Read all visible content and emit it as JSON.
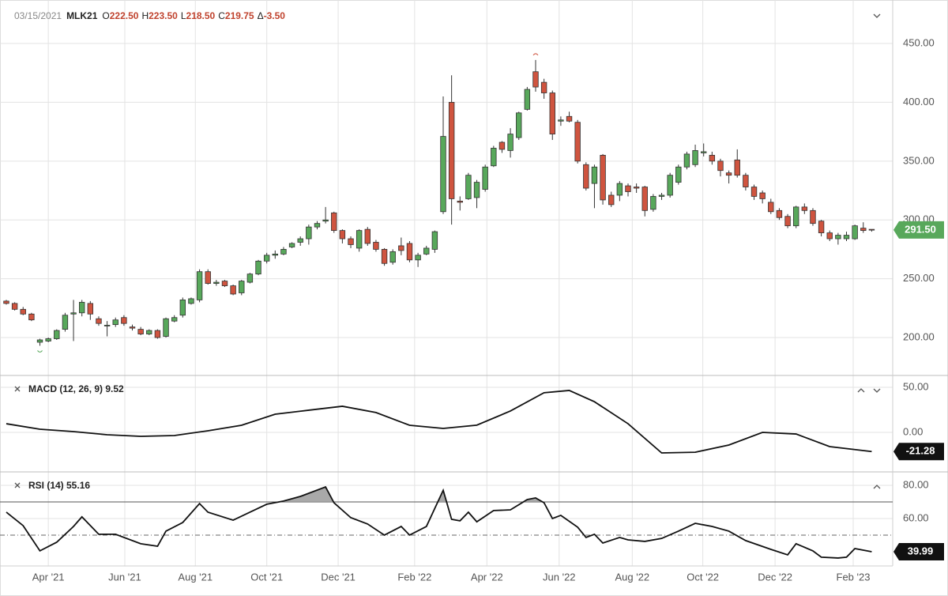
{
  "chart_data": [
    {
      "type": "candlestick",
      "date": "03/15/2021",
      "symbol": "MLK21",
      "ohlc": [
        {
          "key": "O",
          "value": "222.50"
        },
        {
          "key": "H",
          "value": "223.50"
        },
        {
          "key": "L",
          "value": "218.50"
        },
        {
          "key": "C",
          "value": "219.75"
        },
        {
          "key": "Δ",
          "value": "-3.50"
        }
      ],
      "open": [
        231,
        229,
        224,
        220,
        196,
        197,
        199,
        207,
        220,
        221,
        229,
        216,
        210,
        211,
        217,
        209,
        207,
        203,
        206,
        201,
        214,
        219,
        229,
        232,
        256,
        246,
        248,
        244,
        238,
        247,
        254,
        265,
        270,
        271,
        277,
        281,
        284,
        294,
        299,
        306,
        291,
        284,
        276,
        292,
        281,
        275,
        264,
        278,
        280,
        266,
        271,
        275,
        307,
        400,
        316,
        318,
        319,
        326,
        346,
        366,
        359,
        370,
        394,
        426,
        417,
        408,
        384,
        388,
        383,
        347,
        331,
        355,
        321,
        321,
        329,
        328,
        328,
        309,
        320,
        321,
        332,
        345,
        347,
        357,
        355,
        350,
        340,
        351,
        338,
        328,
        323,
        315,
        308,
        303,
        295,
        311,
        308,
        299,
        289,
        284,
        284,
        284,
        293,
        292
      ],
      "high": [
        232,
        230,
        226,
        221,
        199,
        200,
        207,
        221,
        232,
        232,
        231,
        218,
        214,
        217,
        219,
        211,
        209,
        207,
        207,
        217,
        219,
        234,
        234,
        258,
        258,
        249,
        249,
        245,
        249,
        255,
        266,
        272,
        274,
        277,
        281,
        286,
        296,
        299,
        311,
        307,
        292,
        286,
        292,
        294,
        283,
        276,
        275,
        285,
        282,
        272,
        278,
        291,
        405,
        423,
        320,
        340,
        334,
        347,
        363,
        367,
        378,
        392,
        413,
        436,
        420,
        410,
        388,
        392,
        385,
        349,
        347,
        356,
        324,
        333,
        331,
        331,
        329,
        322,
        323,
        340,
        347,
        358,
        364,
        365,
        358,
        352,
        342,
        360,
        340,
        330,
        325,
        318,
        310,
        305,
        312,
        314,
        310,
        300,
        291,
        289,
        290,
        296,
        298,
        292
      ],
      "low": [
        228,
        223,
        219,
        214,
        193,
        196,
        198,
        205,
        197,
        218,
        215,
        210,
        201,
        209,
        210,
        206,
        202,
        202,
        199,
        200,
        213,
        217,
        228,
        230,
        245,
        244,
        243,
        236,
        236,
        246,
        253,
        263,
        267,
        270,
        276,
        278,
        279,
        292,
        297,
        289,
        280,
        276,
        273,
        278,
        273,
        261,
        262,
        270,
        264,
        260,
        270,
        272,
        305,
        296,
        308,
        317,
        310,
        324,
        345,
        357,
        353,
        368,
        393,
        409,
        403,
        368,
        380,
        383,
        348,
        325,
        310,
        313,
        311,
        316,
        320,
        323,
        303,
        307,
        317,
        319,
        330,
        343,
        345,
        354,
        347,
        337,
        331,
        336,
        325,
        317,
        314,
        305,
        300,
        293,
        293,
        305,
        295,
        286,
        282,
        279,
        282,
        283,
        289,
        290
      ],
      "close": [
        229,
        224,
        220,
        215,
        198,
        199,
        206,
        219,
        221,
        230,
        220,
        212,
        210.5,
        215,
        212,
        208,
        203,
        206,
        200,
        216,
        217,
        232,
        233,
        256,
        246,
        247,
        244,
        237,
        248,
        254,
        265,
        270,
        271,
        275,
        280,
        284,
        294,
        297,
        300,
        291,
        284,
        279,
        291,
        280,
        275,
        263,
        273,
        274,
        266,
        270,
        276,
        290,
        371,
        318,
        315,
        338,
        332,
        345,
        361,
        360,
        373,
        391,
        411,
        413,
        408,
        373,
        385,
        384,
        350,
        327,
        345,
        317,
        313,
        331,
        324,
        327,
        308,
        320,
        321,
        338,
        345,
        356,
        359,
        358,
        350,
        342,
        338,
        338,
        328,
        320,
        318,
        307,
        302,
        295,
        311,
        308,
        297,
        289,
        284,
        287,
        287,
        295,
        291,
        291.5
      ],
      "close_label": "291.50",
      "up_color": "#58a85b",
      "down_color": "#cf543f",
      "xlim": [
        -0.75,
        105.5
      ],
      "xticks": [
        {
          "value": 5,
          "label": "Apr '21"
        },
        {
          "value": 14.1,
          "label": "Jun '21"
        },
        {
          "value": 22.5,
          "label": "Aug '21"
        },
        {
          "value": 31,
          "label": "Oct '21"
        },
        {
          "value": 39.5,
          "label": "Dec '21"
        },
        {
          "value": 48.6,
          "label": "Feb '22"
        },
        {
          "value": 57.2,
          "label": "Apr '22"
        },
        {
          "value": 65.8,
          "label": "Jun '22"
        },
        {
          "value": 74.5,
          "label": "Aug '22"
        },
        {
          "value": 82.9,
          "label": "Oct '22"
        },
        {
          "value": 91.5,
          "label": "Dec '22"
        },
        {
          "value": 100.8,
          "label": "Feb '23"
        }
      ],
      "ylim": [
        169.1,
        481.6
      ],
      "yticks": [
        {
          "value": 200,
          "label": "200.00"
        },
        {
          "value": 250,
          "label": "250.00"
        },
        {
          "value": 300,
          "label": "300.00"
        },
        {
          "value": 350,
          "label": "350.00"
        },
        {
          "value": 400,
          "label": "400.00"
        },
        {
          "value": 450,
          "label": "450.00"
        }
      ],
      "grid": true
    },
    {
      "type": "line",
      "title": "MACD (12, 26, 9) 9.52",
      "color": "#111",
      "x": [
        0,
        4,
        8,
        12,
        16,
        20,
        24,
        28,
        32,
        36,
        40,
        44,
        48,
        52,
        56,
        60,
        64,
        67,
        70,
        74,
        78,
        82,
        86,
        90,
        94,
        98,
        103
      ],
      "values": [
        9.6,
        3.5,
        0.9,
        -2.6,
        -4.4,
        -3.5,
        1.8,
        7.9,
        20.2,
        24.6,
        29,
        22,
        7.9,
        4.4,
        8,
        23.7,
        44,
        46.5,
        34,
        9.6,
        -22.8,
        -22,
        -14,
        0,
        -1.8,
        -15.8,
        -21.28
      ],
      "ylim": [
        -41.2,
        60.5
      ],
      "yticks": [
        {
          "value": 0,
          "label": "0.00"
        },
        {
          "value": 50,
          "label": "50.00"
        }
      ],
      "grid": true
    },
    {
      "type": "line",
      "title": "RSI (14) 55.16",
      "color": "#111",
      "x": [
        0,
        2,
        4,
        6,
        8,
        9,
        11,
        13,
        16,
        18,
        19,
        21,
        23,
        24,
        27,
        29,
        31,
        33,
        35,
        38,
        39,
        41,
        43,
        45,
        47,
        48,
        50,
        52,
        53,
        54,
        55,
        56,
        58,
        60,
        62,
        63,
        64,
        65,
        66,
        68,
        69,
        70,
        71,
        73,
        74,
        76,
        78,
        80,
        82,
        84,
        86,
        88,
        91,
        93,
        94,
        96,
        97,
        99,
        100,
        101,
        103
      ],
      "values": [
        63.8,
        55.7,
        40.5,
        45.7,
        55.2,
        61,
        50.5,
        50.5,
        44.8,
        43.3,
        52.4,
        57.6,
        69,
        63.8,
        59,
        63.8,
        68.6,
        70.5,
        73.3,
        79,
        69.5,
        60.5,
        56.7,
        50,
        55.2,
        50,
        55.2,
        77,
        59.5,
        58.6,
        63.8,
        58,
        64.8,
        65.2,
        71.4,
        72.4,
        69.5,
        60,
        61.9,
        54.8,
        48.6,
        50.5,
        45.2,
        48.6,
        47.1,
        46.2,
        48,
        52.4,
        57.1,
        55.2,
        52.4,
        46.7,
        41.4,
        38.1,
        44.8,
        40.5,
        36.7,
        36.2,
        36.7,
        41.9,
        39.99
      ],
      "levels": [
        {
          "value": 70,
          "style": "solid"
        },
        {
          "value": 50,
          "style": "dashdot"
        }
      ],
      "overbought_fill": "#9a9a9a",
      "ylim": [
        31.4,
        87.6
      ],
      "yticks": [
        {
          "value": 60,
          "label": "60.00"
        },
        {
          "value": 80,
          "label": "80.00"
        }
      ],
      "grid": true
    }
  ]
}
